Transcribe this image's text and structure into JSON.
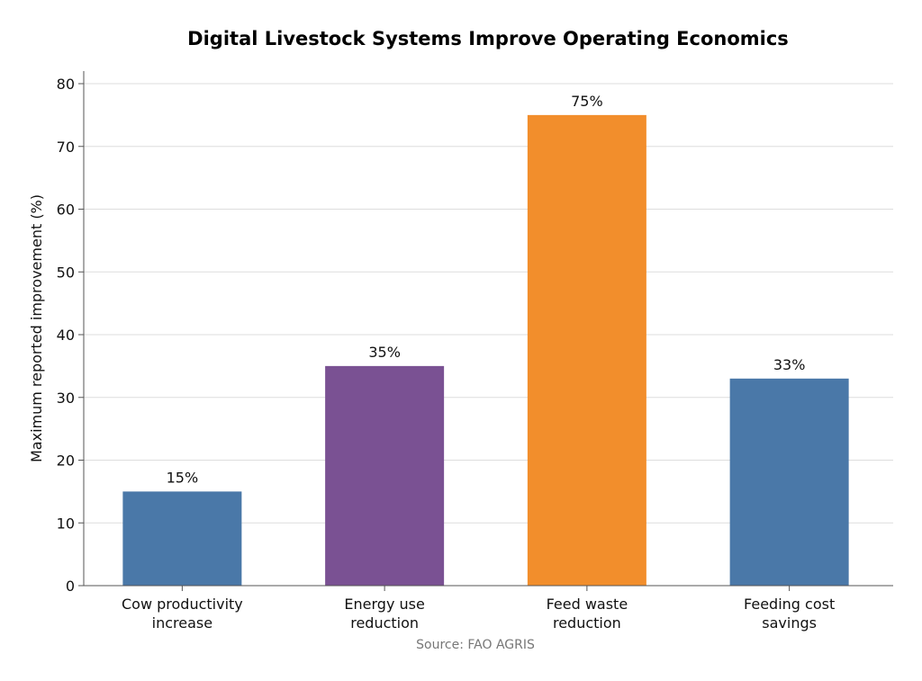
{
  "chart_data": {
    "type": "bar",
    "title": "Digital Livestock Systems Improve Operating Economics",
    "xlabel": "",
    "ylabel": "Maximum reported improvement (%)",
    "ylim": [
      0,
      80
    ],
    "yticks": [
      0,
      10,
      20,
      30,
      40,
      50,
      60,
      70,
      80
    ],
    "categories": [
      [
        "Cow productivity",
        "increase"
      ],
      [
        "Energy use",
        "reduction"
      ],
      [
        "Feed waste",
        "reduction"
      ],
      [
        "Feeding cost",
        "savings"
      ]
    ],
    "values": [
      15,
      35,
      75,
      33
    ],
    "data_labels": [
      "15%",
      "35%",
      "75%",
      "33%"
    ],
    "bar_colors": [
      "#4a78a8",
      "#7a5193",
      "#f28e2c",
      "#4a78a8"
    ],
    "grid": true,
    "source": "Source: FAO AGRIS"
  }
}
